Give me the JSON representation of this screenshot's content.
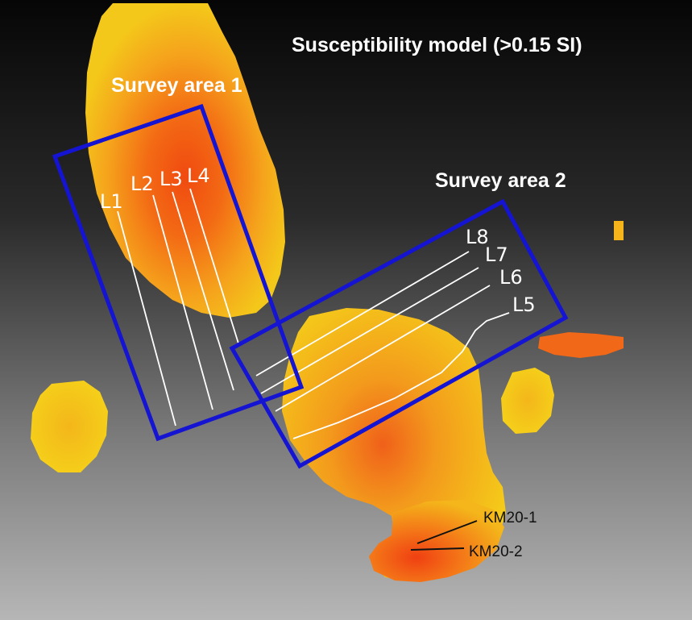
{
  "title": "Susceptibility model (>0.15 SI)",
  "survey_areas": [
    {
      "label": "Survey area 1",
      "color": "#1414d2"
    },
    {
      "label": "Survey area 2",
      "color": "#1414d2"
    }
  ],
  "survey_lines": [
    "L1",
    "L2",
    "L3",
    "L4",
    "L5",
    "L6",
    "L7",
    "L8"
  ],
  "boreholes": [
    "KM20-1",
    "KM20-2"
  ],
  "colors": {
    "background_top": "#070707",
    "background_bottom": "#b4b4b4",
    "low_susceptibility": "#f4c61a",
    "mid_susceptibility": "#f59b1c",
    "high_susceptibility": "#f05010",
    "survey_box": "#1414d2",
    "survey_line": "#ffffff"
  }
}
